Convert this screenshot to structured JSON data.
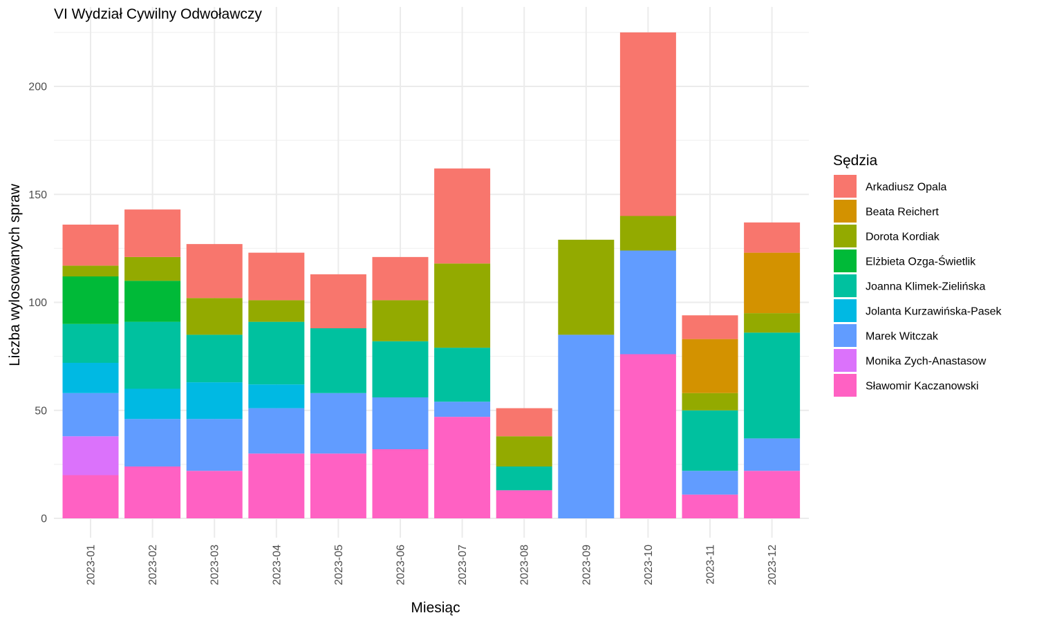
{
  "chart_data": {
    "type": "bar",
    "stacked": true,
    "title": "VI Wydział Cywilny Odwoławczy",
    "xlabel": "Miesiąc",
    "ylabel": "Liczba wylosowanych spraw",
    "ylim": [
      0,
      230
    ],
    "yticks": [
      0,
      50,
      100,
      150,
      200
    ],
    "grid": true,
    "legend_title": "Sędzia",
    "legend_position": "right",
    "categories": [
      "2023-01",
      "2023-02",
      "2023-03",
      "2023-04",
      "2023-05",
      "2023-06",
      "2023-07",
      "2023-08",
      "2023-09",
      "2023-10",
      "2023-11",
      "2023-12"
    ],
    "series": [
      {
        "name": "Sławomir Kaczanowski",
        "color": "#FF61C3",
        "values": [
          20,
          24,
          22,
          30,
          30,
          32,
          47,
          13,
          0,
          76,
          11,
          22
        ]
      },
      {
        "name": "Monika Zych-Anastasow",
        "color": "#DB72FB",
        "values": [
          18,
          0,
          0,
          0,
          0,
          0,
          0,
          0,
          0,
          0,
          0,
          0
        ]
      },
      {
        "name": "Marek Witczak",
        "color": "#619CFF",
        "values": [
          20,
          22,
          24,
          21,
          28,
          24,
          7,
          0,
          85,
          48,
          11,
          15
        ]
      },
      {
        "name": "Jolanta Kurzawińska-Pasek",
        "color": "#00B9E3",
        "values": [
          14,
          14,
          17,
          11,
          0,
          0,
          0,
          0,
          0,
          0,
          0,
          0
        ]
      },
      {
        "name": "Joanna Klimek-Zielińska",
        "color": "#00C19F",
        "values": [
          18,
          31,
          22,
          29,
          30,
          26,
          25,
          11,
          0,
          0,
          28,
          49
        ]
      },
      {
        "name": "Elżbieta Ozga-Świetlik",
        "color": "#00BA38",
        "values": [
          22,
          19,
          0,
          0,
          0,
          0,
          0,
          0,
          0,
          0,
          0,
          0
        ]
      },
      {
        "name": "Dorota Kordiak",
        "color": "#93AA00",
        "values": [
          5,
          11,
          17,
          10,
          0,
          19,
          39,
          14,
          44,
          16,
          8,
          9
        ]
      },
      {
        "name": "Beata Reichert",
        "color": "#D39200",
        "values": [
          0,
          0,
          0,
          0,
          0,
          0,
          0,
          0,
          0,
          0,
          25,
          28
        ]
      },
      {
        "name": "Arkadiusz Opala",
        "color": "#F8766D",
        "values": [
          19,
          22,
          25,
          22,
          25,
          20,
          44,
          13,
          0,
          85,
          11,
          14
        ]
      }
    ],
    "legend_order": [
      "Arkadiusz Opala",
      "Beata Reichert",
      "Dorota Kordiak",
      "Elżbieta Ozga-Świetlik",
      "Joanna Klimek-Zielińska",
      "Jolanta Kurzawińska-Pasek",
      "Marek Witczak",
      "Monika Zych-Anastasow",
      "Sławomir Kaczanowski"
    ]
  }
}
